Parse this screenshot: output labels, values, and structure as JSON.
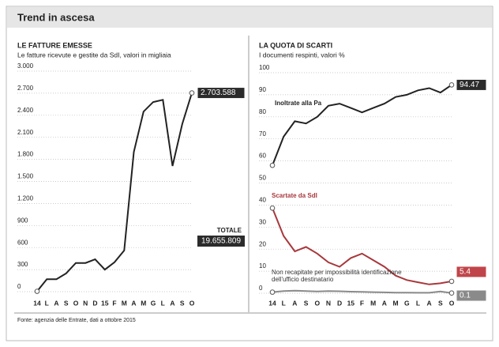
{
  "header": {
    "title": "Trend in ascesa"
  },
  "source": "Fonte: agenzia delle Entrate, dati a ottobre 2015",
  "chart_data": [
    {
      "type": "line",
      "title": "LE FATTURE EMESSE",
      "subtitle": "Le fatture ricevute e gestite da SdI, valori in migliaia",
      "categories": [
        "14",
        "L",
        "A",
        "S",
        "O",
        "N",
        "D",
        "15",
        "F",
        "M",
        "A",
        "M",
        "G",
        "L",
        "A",
        "S",
        "O"
      ],
      "values": [
        5,
        170,
        170,
        250,
        390,
        390,
        440,
        300,
        400,
        560,
        1900,
        2450,
        2580,
        2610,
        1710,
        2280,
        2703.588
      ],
      "value_labels": [
        null,
        null,
        null,
        null,
        null,
        null,
        null,
        null,
        null,
        null,
        null,
        null,
        null,
        null,
        null,
        null,
        "2.703.588"
      ],
      "color": "#222222",
      "annotations": [
        "TOTALE",
        "19.655.809"
      ],
      "ylim": [
        0,
        3000
      ],
      "yticks": [
        0,
        300,
        600,
        900,
        {
          "value": 1200,
          "label": "1.200"
        },
        {
          "value": 1500,
          "label": "1.500"
        },
        {
          "value": 1800,
          "label": "1.800"
        },
        {
          "value": 2100,
          "label": "2.100"
        },
        {
          "value": 2400,
          "label": "2.400"
        },
        {
          "value": 2700,
          "label": "2.700"
        },
        {
          "value": 3000,
          "label": "3.000"
        }
      ],
      "grid": true
    },
    {
      "type": "line",
      "title": "LA QUOTA DI SCARTI",
      "subtitle": "I documenti respinti, valori %",
      "categories": [
        "14",
        "L",
        "A",
        "S",
        "O",
        "N",
        "D",
        "15",
        "F",
        "M",
        "A",
        "M",
        "G",
        "L",
        "A",
        "S",
        "O"
      ],
      "series": [
        {
          "name": "Inoltrate alla Pa",
          "color": "#222222",
          "values": [
            58,
            71,
            78,
            77,
            80,
            85,
            86,
            84,
            82,
            84,
            86,
            89,
            90,
            92,
            93,
            91,
            94.47
          ],
          "value_labels": [
            null,
            null,
            null,
            null,
            null,
            null,
            null,
            null,
            null,
            null,
            null,
            null,
            null,
            null,
            null,
            null,
            "94.47"
          ]
        },
        {
          "name": "Scartate da SdI",
          "color": "#a8383c",
          "values": [
            38.6,
            26,
            19,
            21,
            18,
            14,
            12,
            16,
            18,
            15,
            12,
            8,
            6,
            5,
            4,
            4.5,
            5.4
          ],
          "value_labels": [
            null,
            null,
            null,
            null,
            null,
            null,
            null,
            null,
            null,
            null,
            null,
            null,
            null,
            null,
            null,
            null,
            "5.4"
          ]
        },
        {
          "name": "Non recapitate per impossibilità identificazione dell'ufficio destinatario",
          "color": "#8a8a8a",
          "values": [
            0.5,
            1,
            1.2,
            1,
            0.8,
            1,
            0.9,
            0.7,
            0.6,
            0.5,
            0.4,
            0.3,
            0.3,
            0.2,
            0.2,
            0.8,
            0.1
          ],
          "value_labels": [
            null,
            null,
            null,
            null,
            null,
            null,
            null,
            null,
            null,
            null,
            null,
            null,
            null,
            null,
            null,
            null,
            "0.1"
          ]
        }
      ],
      "ylim": [
        0,
        100
      ],
      "yticks": [
        0,
        10,
        20,
        30,
        40,
        50,
        60,
        70,
        80,
        90,
        100
      ],
      "grid": true
    }
  ]
}
